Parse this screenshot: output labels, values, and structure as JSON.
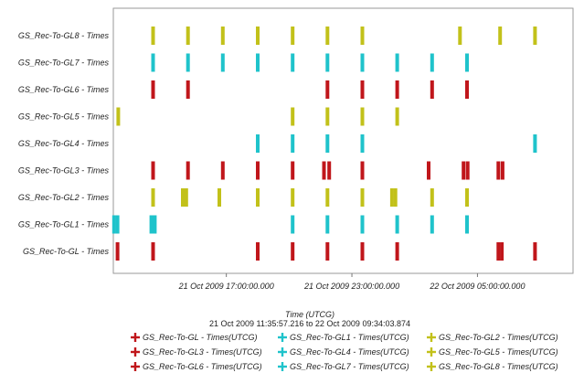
{
  "chart_data": {
    "type": "timeline",
    "title": "",
    "xlabel": "Time (UTCG)",
    "time_range_label": "21 Oct 2009 11:35:57.216  to  22 Oct 2009 09:34:03.874",
    "x_start": "2009-10-21T11:35:57.216",
    "x_end": "2009-10-22T09:34:03.874",
    "xticks": [
      {
        "label": "21 Oct 2009 17:00:00.000",
        "time": "2009-10-21T17:00:00"
      },
      {
        "label": "21 Oct 2009 23:00:00.000",
        "time": "2009-10-21T23:00:00"
      },
      {
        "label": "22 Oct 2009 05:00:00.000",
        "time": "2009-10-22T05:00:00"
      }
    ],
    "grid": false,
    "legend_placement": "bottom",
    "colors": {
      "red": "#c0161b",
      "cyan": "#1fc3cb",
      "yellow": "#c2c11a"
    },
    "series": [
      {
        "name": "GS_Rec-To-GL8 - Times",
        "legend": "GS_Rec-To-GL8 - Times(UTCG)",
        "color": "yellow",
        "times": [
          "2009-10-21T13:30:00",
          "2009-10-21T15:10:00",
          "2009-10-21T16:50:00",
          "2009-10-21T18:30:00",
          "2009-10-21T20:10:00",
          "2009-10-21T21:50:00",
          "2009-10-21T23:30:00",
          "2009-10-22T04:10:00",
          "2009-10-22T06:05:00",
          "2009-10-22T07:45:00"
        ]
      },
      {
        "name": "GS_Rec-To-GL7 - Times",
        "legend": "GS_Rec-To-GL7 - Times(UTCG)",
        "color": "cyan",
        "times": [
          "2009-10-21T13:30:00",
          "2009-10-21T15:10:00",
          "2009-10-21T16:50:00",
          "2009-10-21T18:30:00",
          "2009-10-21T20:10:00",
          "2009-10-21T21:50:00",
          "2009-10-21T23:30:00",
          "2009-10-22T01:10:00",
          "2009-10-22T02:50:00",
          "2009-10-22T04:30:00"
        ]
      },
      {
        "name": "GS_Rec-To-GL6 - Times",
        "legend": "GS_Rec-To-GL6 - Times(UTCG)",
        "color": "red",
        "times": [
          "2009-10-21T13:30:00",
          "2009-10-21T15:10:00",
          "2009-10-21T21:50:00",
          "2009-10-21T23:30:00",
          "2009-10-22T01:10:00",
          "2009-10-22T02:50:00",
          "2009-10-22T04:30:00"
        ]
      },
      {
        "name": "GS_Rec-To-GL5 - Times",
        "legend": "GS_Rec-To-GL5 - Times(UTCG)",
        "color": "yellow",
        "times": [
          "2009-10-21T11:50:00",
          "2009-10-21T20:10:00",
          "2009-10-21T21:50:00",
          "2009-10-21T23:30:00",
          "2009-10-22T01:10:00"
        ]
      },
      {
        "name": "GS_Rec-To-GL4 - Times",
        "legend": "GS_Rec-To-GL4 - Times(UTCG)",
        "color": "cyan",
        "times": [
          "2009-10-21T18:30:00",
          "2009-10-21T20:10:00",
          "2009-10-21T21:50:00",
          "2009-10-21T23:30:00",
          "2009-10-22T07:45:00"
        ]
      },
      {
        "name": "GS_Rec-To-GL3 - Times",
        "legend": "GS_Rec-To-GL3 - Times(UTCG)",
        "color": "red",
        "times": [
          "2009-10-21T13:30:00",
          "2009-10-21T15:10:00",
          "2009-10-21T16:50:00",
          "2009-10-21T18:30:00",
          "2009-10-21T20:10:00",
          "2009-10-21T21:40:00",
          "2009-10-21T21:55:00",
          "2009-10-21T23:30:00",
          "2009-10-22T02:40:00",
          "2009-10-22T04:20:00",
          "2009-10-22T04:32:00",
          "2009-10-22T06:00:00",
          "2009-10-22T06:12:00"
        ]
      },
      {
        "name": "GS_Rec-To-GL2 - Times",
        "legend": "GS_Rec-To-GL2 - Times(UTCG)",
        "color": "yellow",
        "times": [
          "2009-10-21T13:30:00",
          "2009-10-21T14:55:00",
          "2009-10-21T15:05:00",
          "2009-10-21T16:40:00",
          "2009-10-21T18:30:00",
          "2009-10-21T20:10:00",
          "2009-10-21T21:50:00",
          "2009-10-21T23:30:00",
          "2009-10-22T00:55:00",
          "2009-10-22T01:05:00",
          "2009-10-22T02:50:00",
          "2009-10-22T04:30:00"
        ]
      },
      {
        "name": "GS_Rec-To-GL1 - Times",
        "legend": "GS_Rec-To-GL1 - Times(UTCG)",
        "color": "cyan",
        "times": [
          "2009-10-21T11:38:00",
          "2009-10-21T11:48:00",
          "2009-10-21T13:25:00",
          "2009-10-21T13:35:00",
          "2009-10-21T20:10:00",
          "2009-10-21T21:50:00",
          "2009-10-21T23:30:00",
          "2009-10-22T01:10:00",
          "2009-10-22T02:50:00",
          "2009-10-22T04:30:00"
        ]
      },
      {
        "name": "GS_Rec-To-GL - Times",
        "legend": "GS_Rec-To-GL - Times(UTCG)",
        "color": "red",
        "times": [
          "2009-10-21T11:48:00",
          "2009-10-21T13:30:00",
          "2009-10-21T18:30:00",
          "2009-10-21T20:10:00",
          "2009-10-21T21:50:00",
          "2009-10-21T23:30:00",
          "2009-10-22T01:10:00",
          "2009-10-22T06:00:00",
          "2009-10-22T06:10:00",
          "2009-10-22T07:45:00"
        ]
      }
    ],
    "legend_order": [
      "GS_Rec-To-GL - Times",
      "GS_Rec-To-GL1 - Times",
      "GS_Rec-To-GL2 - Times",
      "GS_Rec-To-GL3 - Times",
      "GS_Rec-To-GL4 - Times",
      "GS_Rec-To-GL5 - Times",
      "GS_Rec-To-GL6 - Times",
      "GS_Rec-To-GL7 - Times",
      "GS_Rec-To-GL8 - Times"
    ]
  }
}
